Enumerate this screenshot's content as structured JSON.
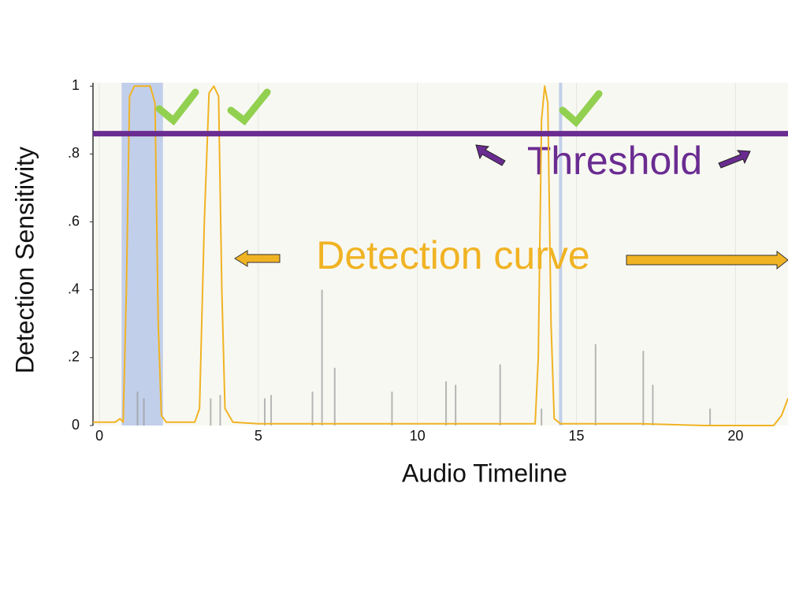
{
  "chart_data": {
    "type": "line",
    "y_label": "Detection Sensitivity",
    "x_label": "Audio Timeline",
    "annotations": [
      "Threshold",
      "Detection curve"
    ],
    "color": "#f0b323",
    "x": [
      -0.2,
      0.5,
      0.65,
      0.75,
      0.85,
      0.95,
      1.1,
      1.6,
      1.75,
      1.85,
      1.95,
      2.1,
      3.0,
      3.15,
      3.3,
      3.45,
      3.6,
      3.75,
      3.85,
      3.95,
      4.2,
      5,
      10,
      13.7,
      13.8,
      13.9,
      14.0,
      14.1,
      14.2,
      14.3,
      14.5,
      17,
      19,
      20,
      21.2,
      21.45,
      21.65
    ],
    "values": [
      0.01,
      0.01,
      0.02,
      0.01,
      0.4,
      0.97,
      1.0,
      1.0,
      0.95,
      0.3,
      0.03,
      0.01,
      0.01,
      0.05,
      0.6,
      0.98,
      1.0,
      0.97,
      0.4,
      0.05,
      0.01,
      0.005,
      0.005,
      0.005,
      0.2,
      0.9,
      1.0,
      0.95,
      0.3,
      0.02,
      0.005,
      0.005,
      0.0,
      0.0,
      0.0,
      0.03,
      0.08
    ],
    "waveform": {
      "color": "#9a9a9a",
      "x": [
        1.2,
        1.4,
        3.5,
        3.8,
        5.2,
        5.4,
        6.7,
        7.0,
        7.4,
        9.2,
        10.9,
        11.2,
        12.6,
        13.9,
        15.6,
        17.1,
        17.4,
        19.2
      ],
      "values": [
        0.1,
        0.08,
        0.08,
        0.09,
        0.08,
        0.09,
        0.1,
        0.4,
        0.17,
        0.1,
        0.13,
        0.12,
        0.18,
        0.05,
        0.24,
        0.22,
        0.12,
        0.05
      ]
    },
    "highlights": [
      [
        0.7,
        2.0
      ],
      [
        14.45,
        14.55
      ]
    ],
    "highlight_color": "#b9c8e8",
    "threshold": 0.86,
    "threshold_color": "#6a2c91",
    "xlim": [
      -0.2,
      21.65
    ],
    "ylim": [
      0,
      1.01
    ],
    "xticks": [
      0,
      5,
      10,
      15,
      20
    ],
    "yticks": [
      0,
      {
        "value": 0.2,
        "label": ".2"
      },
      {
        "value": 0.4,
        "label": ".4"
      },
      {
        "value": 0.6,
        "label": ".6"
      },
      {
        "value": 0.8,
        "label": ".8"
      },
      1
    ]
  }
}
